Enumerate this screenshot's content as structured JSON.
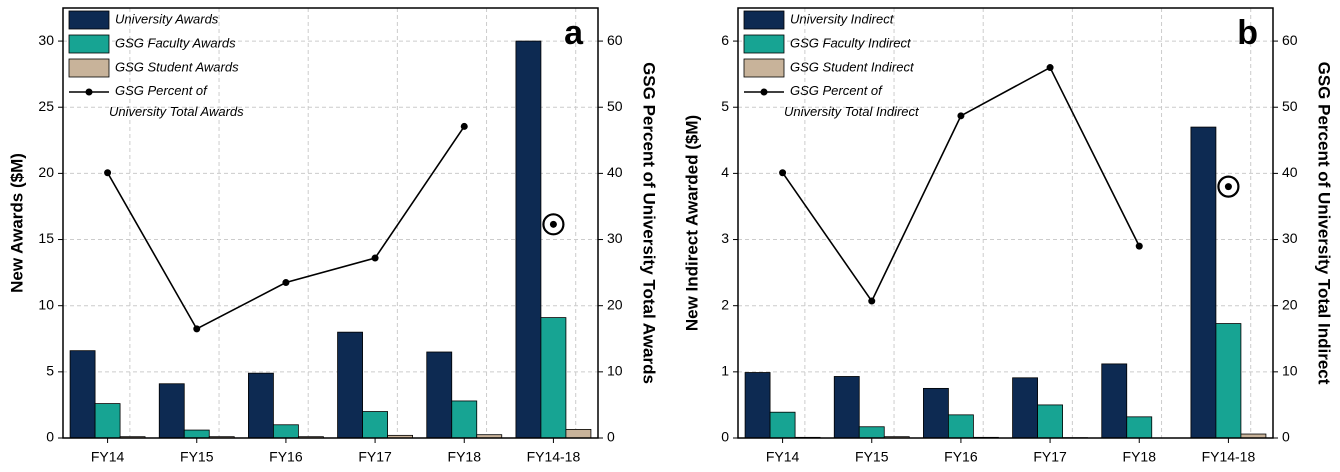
{
  "chart_data": [
    {
      "type": "bar",
      "panel": "a",
      "y_label": "New Awards ($M)",
      "y2_label": "GSG Percent of University Total Awards",
      "categories": [
        "FY14",
        "FY15",
        "FY16",
        "FY17",
        "FY18",
        "FY14-18"
      ],
      "ylim": [
        0,
        32.5
      ],
      "yticks": [
        0,
        5,
        10,
        15,
        20,
        25,
        30
      ],
      "y2lim": [
        0,
        65
      ],
      "y2ticks": [
        0,
        10,
        20,
        30,
        40,
        50,
        60
      ],
      "grid": true,
      "series": [
        {
          "name": "University Awards",
          "color": "#0d2a52",
          "values": [
            6.6,
            4.1,
            4.9,
            8.0,
            6.5,
            30.0
          ]
        },
        {
          "name": "GSG Faculty Awards",
          "color": "#17a493",
          "values": [
            2.6,
            0.6,
            1.0,
            2.0,
            2.8,
            9.1
          ]
        },
        {
          "name": "GSG Student Awards",
          "color": "#c8b39a",
          "values": [
            0.1,
            0.1,
            0.1,
            0.2,
            0.25,
            0.65
          ]
        },
        {
          "name": "GSG Percent of University Total Awards",
          "type": "line",
          "axis": "y2",
          "color": "#000000",
          "values": [
            40.1,
            16.5,
            23.5,
            27.2,
            47.1,
            null
          ]
        }
      ],
      "total_marker_value": 32.3
    },
    {
      "type": "bar",
      "panel": "b",
      "y_label": "New Indirect Awarded ($M)",
      "y2_label": "GSG Percent of University Total Indirect",
      "categories": [
        "FY14",
        "FY15",
        "FY16",
        "FY17",
        "FY18",
        "FY14-18"
      ],
      "ylim": [
        0,
        6.5
      ],
      "yticks": [
        0,
        1,
        2,
        3,
        4,
        5,
        6
      ],
      "y2lim": [
        0,
        65
      ],
      "y2ticks": [
        0,
        10,
        20,
        30,
        40,
        50,
        60
      ],
      "grid": true,
      "series": [
        {
          "name": "University Indirect",
          "color": "#0d2a52",
          "values": [
            0.99,
            0.93,
            0.75,
            0.91,
            1.12,
            4.7
          ]
        },
        {
          "name": "GSG Faculty Indirect",
          "color": "#17a493",
          "values": [
            0.39,
            0.17,
            0.35,
            0.5,
            0.32,
            1.73
          ]
        },
        {
          "name": "GSG Student Indirect",
          "color": "#c8b39a",
          "values": [
            0.01,
            0.02,
            0.01,
            0.005,
            0,
            0.06
          ]
        },
        {
          "name": "GSG Percent of University Total Indirect",
          "type": "line",
          "axis": "y2",
          "color": "#000000",
          "values": [
            40.1,
            20.7,
            48.7,
            56.0,
            29.0,
            null
          ]
        }
      ],
      "total_marker_value": 38.0
    }
  ]
}
